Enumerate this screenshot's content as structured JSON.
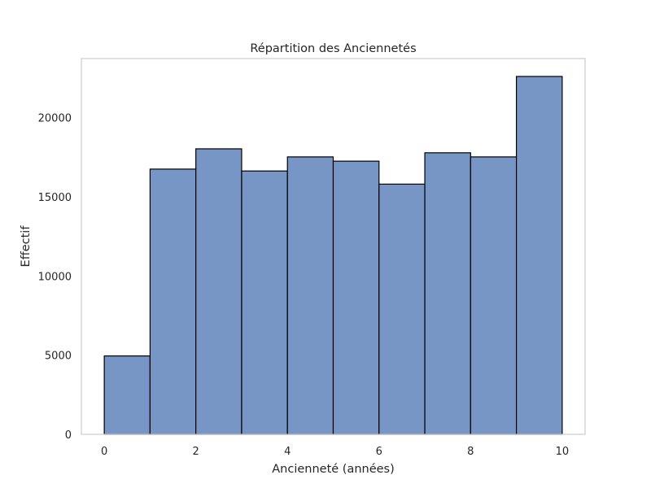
{
  "chart_data": {
    "type": "bar",
    "title": "Répartition des Anciennetés",
    "xlabel": "Ancienneté (années)",
    "ylabel": "Effectif",
    "bins": [
      {
        "start": 0,
        "end": 1,
        "value": 4950
      },
      {
        "start": 1,
        "end": 2,
        "value": 16750
      },
      {
        "start": 2,
        "end": 3,
        "value": 18030
      },
      {
        "start": 3,
        "end": 4,
        "value": 16630
      },
      {
        "start": 4,
        "end": 5,
        "value": 17520
      },
      {
        "start": 5,
        "end": 6,
        "value": 17250
      },
      {
        "start": 6,
        "end": 7,
        "value": 15800
      },
      {
        "start": 7,
        "end": 8,
        "value": 17780
      },
      {
        "start": 8,
        "end": 9,
        "value": 17520
      },
      {
        "start": 9,
        "end": 10,
        "value": 22600
      }
    ],
    "xlim": [
      -0.5,
      10.5
    ],
    "ylim": [
      0,
      23730
    ],
    "x_ticks": [
      0,
      2,
      4,
      6,
      8,
      10
    ],
    "y_ticks": [
      0,
      5000,
      10000,
      15000,
      20000
    ],
    "grid": false,
    "bar_color": "#7896c5",
    "edge_color": "#000000",
    "frame_color": "#cccccc"
  }
}
